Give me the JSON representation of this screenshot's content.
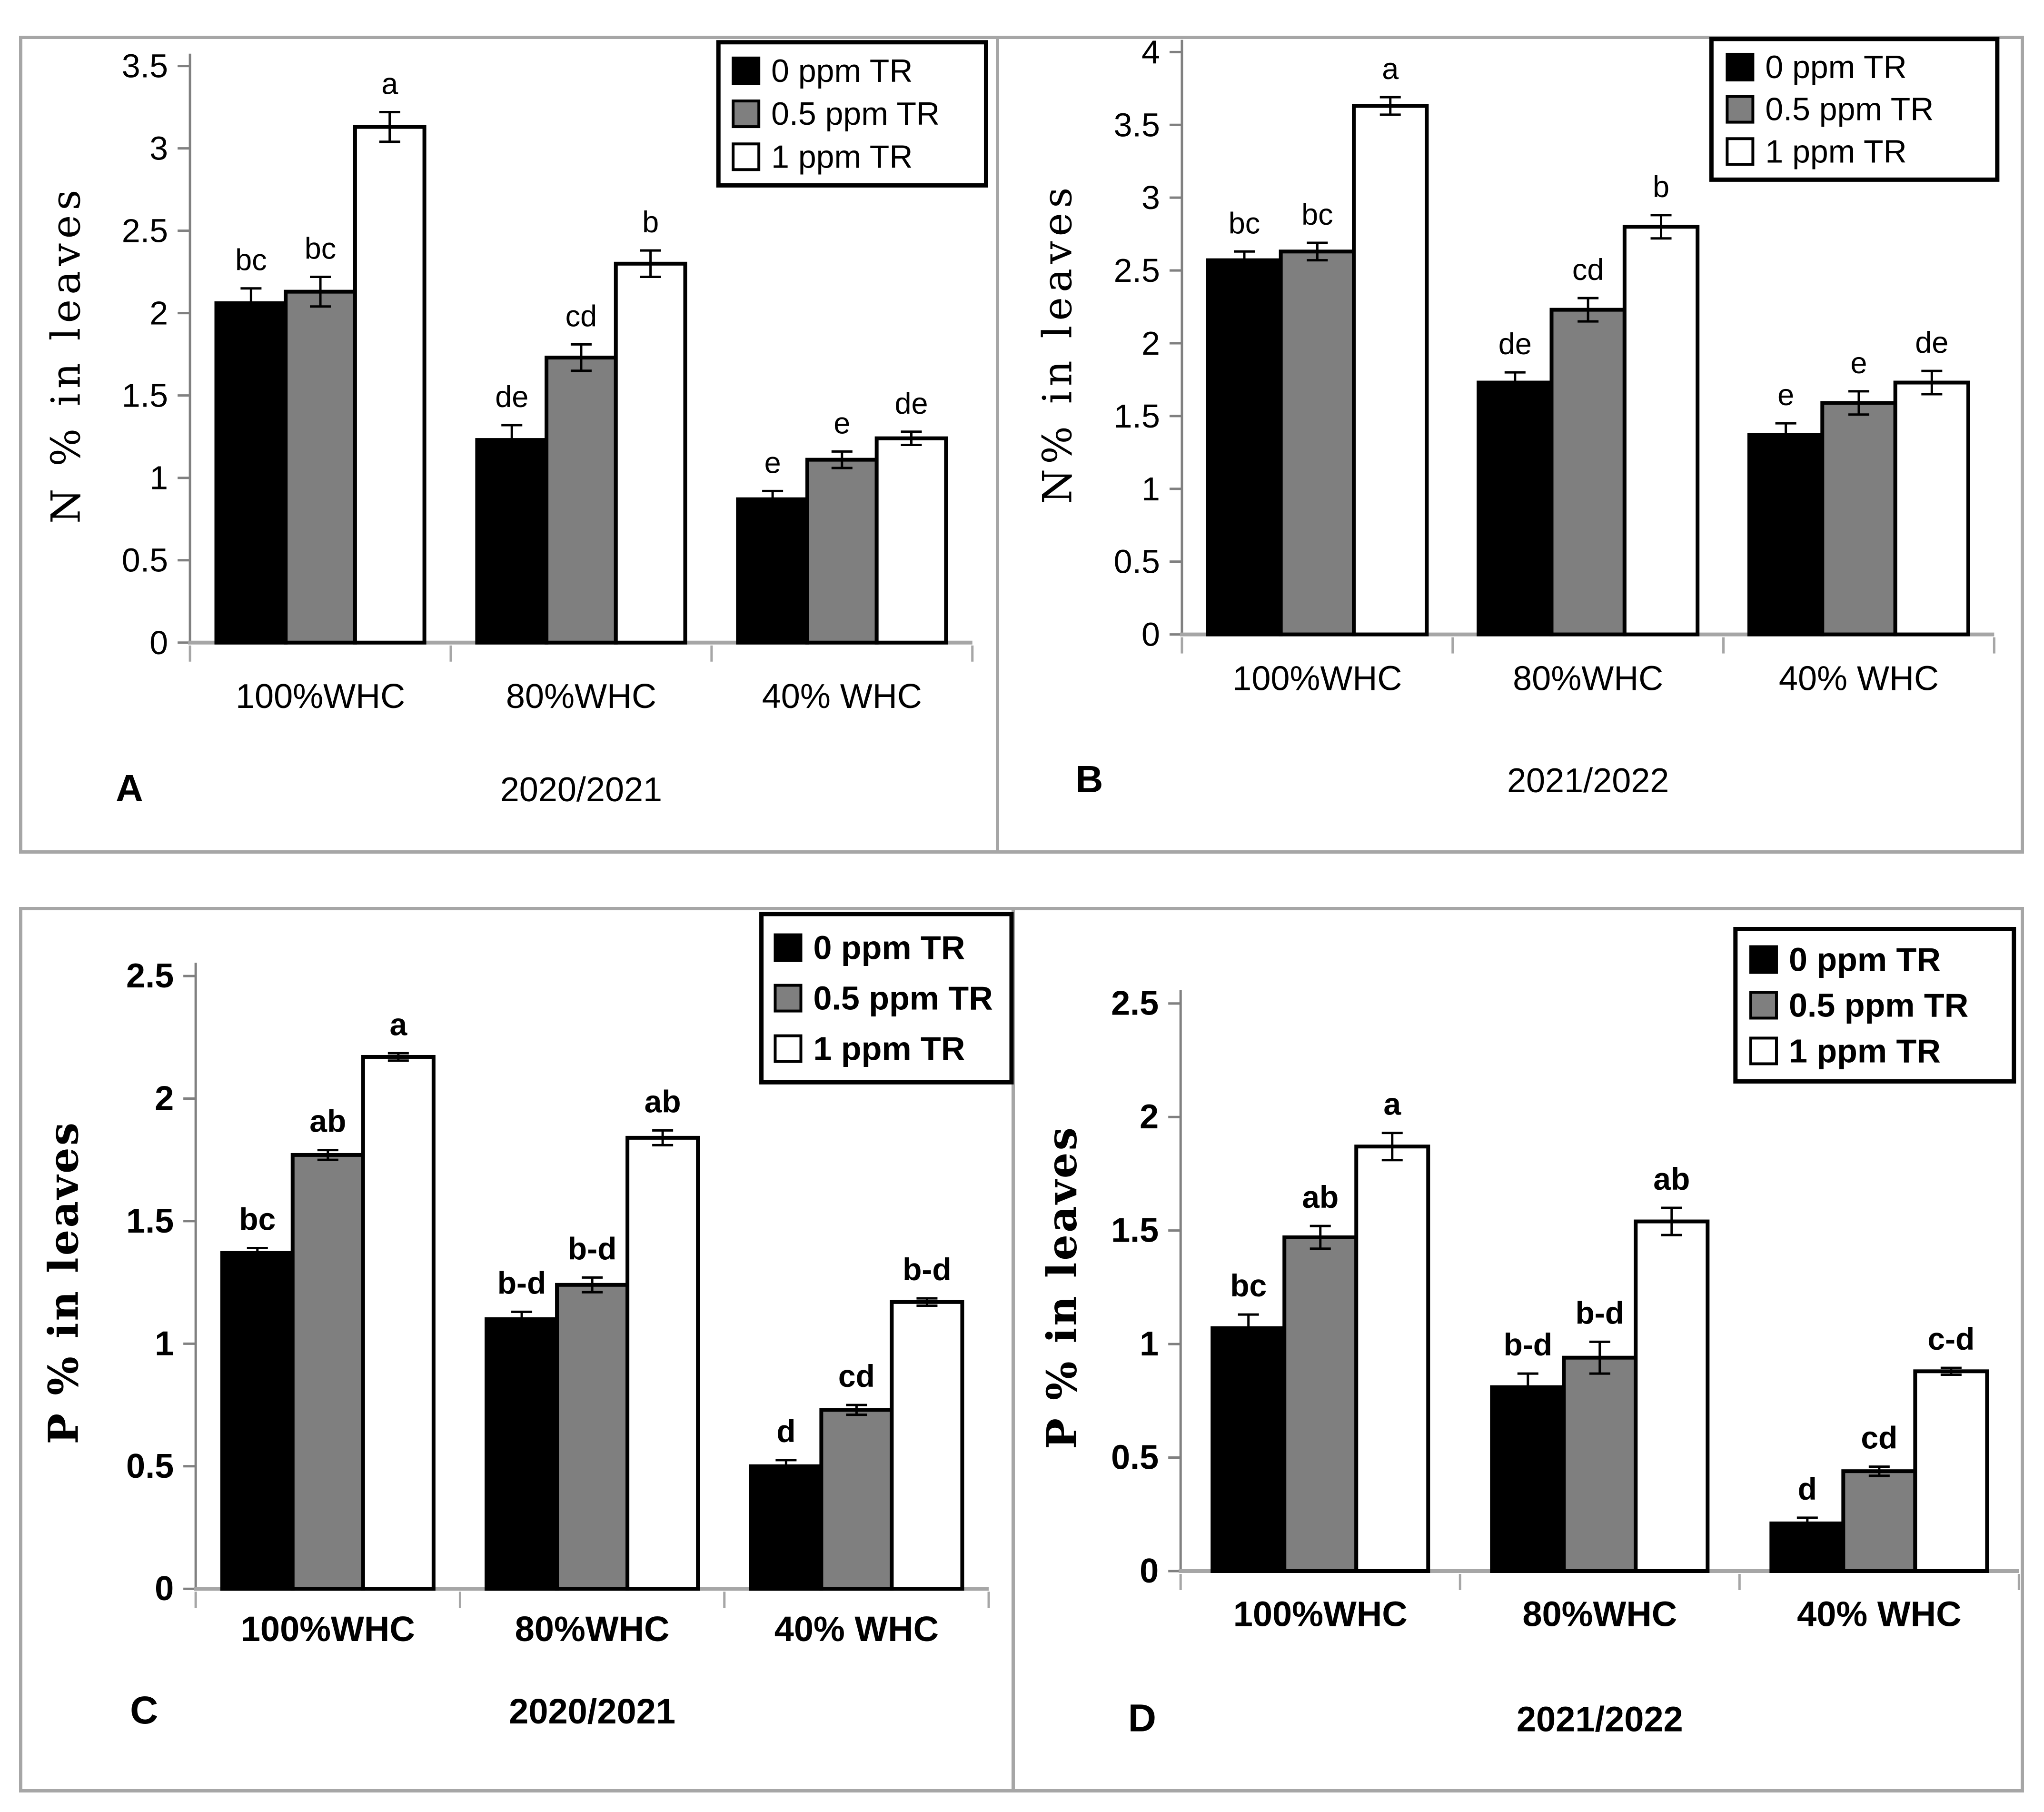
{
  "chart_data": [
    {
      "id": "A",
      "type": "bar",
      "panel_label": "A",
      "title": "2020/2021",
      "ylabel": "N % in leaves",
      "ylim": [
        0,
        3.5
      ],
      "ymax": 3.5,
      "ytick_step": 0.5,
      "grid": false,
      "legend_position": "top-right",
      "categories": [
        "100%WHC",
        "80%WHC",
        "40% WHC"
      ],
      "series": [
        {
          "name": "0 ppm TR",
          "fill": "#000000",
          "values": [
            2.06,
            1.23,
            0.87
          ],
          "errors": [
            0.09,
            0.09,
            0.05
          ],
          "letters": [
            "bc",
            "de",
            "e"
          ]
        },
        {
          "name": "0.5 ppm TR",
          "fill": "#7f7f7f",
          "values": [
            2.13,
            1.73,
            1.11
          ],
          "errors": [
            0.09,
            0.08,
            0.05
          ],
          "letters": [
            "bc",
            "cd",
            "e"
          ]
        },
        {
          "name": "1 ppm TR",
          "fill": "#ffffff",
          "values": [
            3.13,
            2.3,
            1.24
          ],
          "errors": [
            0.09,
            0.08,
            0.04
          ],
          "letters": [
            "a",
            "b",
            "de"
          ]
        }
      ]
    },
    {
      "id": "B",
      "type": "bar",
      "panel_label": "B",
      "title": "2021/2022",
      "ylabel": "N% in leaves",
      "ylim": [
        0,
        4
      ],
      "ymax": 4,
      "ytick_step": 0.5,
      "grid": false,
      "legend_position": "top-right",
      "categories": [
        "100%WHC",
        "80%WHC",
        "40% WHC"
      ],
      "series": [
        {
          "name": "0 ppm TR",
          "fill": "#000000",
          "values": [
            2.57,
            1.73,
            1.37
          ],
          "errors": [
            0.06,
            0.07,
            0.08
          ],
          "letters": [
            "bc",
            "de",
            "e"
          ]
        },
        {
          "name": "0.5 ppm TR",
          "fill": "#7f7f7f",
          "values": [
            2.63,
            2.23,
            1.59
          ],
          "errors": [
            0.06,
            0.08,
            0.08
          ],
          "letters": [
            "bc",
            "cd",
            "e"
          ]
        },
        {
          "name": "1 ppm TR",
          "fill": "#ffffff",
          "values": [
            3.63,
            2.8,
            1.73
          ],
          "errors": [
            0.06,
            0.08,
            0.08
          ],
          "letters": [
            "a",
            "b",
            "de"
          ]
        }
      ]
    },
    {
      "id": "C",
      "type": "bar",
      "panel_label": "C",
      "title": "2020/2021",
      "ylabel": "P % in leaves",
      "ylim": [
        0,
        2.5
      ],
      "ymax": 2.5,
      "ytick_step": 0.5,
      "grid": false,
      "legend_position": "top-right",
      "categories": [
        "100%WHC",
        "80%WHC",
        "40% WHC"
      ],
      "series": [
        {
          "name": "0 ppm TR",
          "fill": "#000000",
          "values": [
            1.37,
            1.1,
            0.5
          ],
          "errors": [
            0.02,
            0.03,
            0.025
          ],
          "letters": [
            "bc",
            "b-d",
            "d"
          ]
        },
        {
          "name": "0.5 ppm TR",
          "fill": "#7f7f7f",
          "values": [
            1.77,
            1.24,
            0.73
          ],
          "errors": [
            0.02,
            0.03,
            0.02
          ],
          "letters": [
            "ab",
            "b-d",
            "cd"
          ]
        },
        {
          "name": "1 ppm TR",
          "fill": "#ffffff",
          "values": [
            2.17,
            1.84,
            1.17
          ],
          "errors": [
            0.015,
            0.03,
            0.015
          ],
          "letters": [
            "a",
            "ab",
            "b-d"
          ]
        }
      ]
    },
    {
      "id": "D",
      "type": "bar",
      "panel_label": "D",
      "title": "2021/2022",
      "ylabel": "P % in leaves",
      "ylim": [
        0,
        2.5
      ],
      "ymax": 2.5,
      "ytick_step": 0.5,
      "grid": false,
      "legend_position": "top-right",
      "categories": [
        "100%WHC",
        "80%WHC",
        "40% WHC"
      ],
      "series": [
        {
          "name": "0 ppm TR",
          "fill": "#000000",
          "values": [
            1.07,
            0.81,
            0.21
          ],
          "errors": [
            0.06,
            0.06,
            0.025
          ],
          "letters": [
            "bc",
            "b-d",
            "d"
          ]
        },
        {
          "name": "0.5 ppm TR",
          "fill": "#7f7f7f",
          "values": [
            1.47,
            0.94,
            0.44
          ],
          "errors": [
            0.05,
            0.07,
            0.02
          ],
          "letters": [
            "ab",
            "b-d",
            "cd"
          ]
        },
        {
          "name": "1 ppm TR",
          "fill": "#ffffff",
          "values": [
            1.87,
            1.54,
            0.88
          ],
          "errors": [
            0.06,
            0.06,
            0.015
          ],
          "letters": [
            "a",
            "ab",
            "c-d"
          ]
        }
      ]
    }
  ],
  "colors": {
    "bar_black": "#000000",
    "bar_gray": "#7f7f7f",
    "bar_white": "#ffffff",
    "axis_line": "#808080",
    "baseline": "#a6a6a6",
    "frame_border": "#a6a6a6",
    "text": "#000000"
  }
}
